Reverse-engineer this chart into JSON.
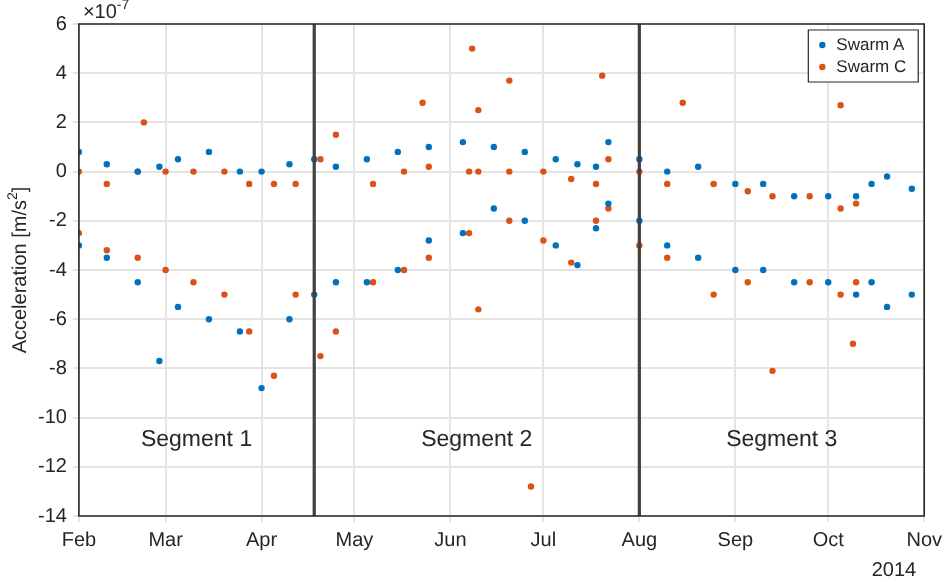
{
  "chart_data": {
    "type": "scatter",
    "ylabel": "Acceleration [m/s$^{2}$]",
    "annotations": [
      "×10$^{-7}$",
      "2014",
      "Segment 1",
      "Segment 2",
      "Segment 3"
    ],
    "series": [
      {
        "name": "Swarm A",
        "color": "#0072bd",
        "x": [
          "2014-02-01",
          "2014-02-01",
          "2014-02-10",
          "2014-02-10",
          "2014-02-20",
          "2014-02-20",
          "2014-02-27",
          "2014-02-27",
          "2014-03-05",
          "2014-03-05",
          "2014-03-15",
          "2014-03-15",
          "2014-03-25",
          "2014-03-25",
          "2014-04-01",
          "2014-04-01",
          "2014-04-10",
          "2014-04-10",
          "2014-04-18",
          "2014-04-18",
          "2014-04-25",
          "2014-04-25",
          "2014-05-05",
          "2014-05-05",
          "2014-05-15",
          "2014-05-15",
          "2014-05-25",
          "2014-05-25",
          "2014-06-05",
          "2014-06-05",
          "2014-06-15",
          "2014-06-15",
          "2014-06-25",
          "2014-06-25",
          "2014-07-05",
          "2014-07-05",
          "2014-07-12",
          "2014-07-12",
          "2014-07-18",
          "2014-07-18",
          "2014-07-22",
          "2014-07-22",
          "2014-08-01",
          "2014-08-01",
          "2014-08-10",
          "2014-08-10",
          "2014-08-20",
          "2014-08-20",
          "2014-09-01",
          "2014-09-01",
          "2014-09-10",
          "2014-09-10",
          "2014-09-20",
          "2014-09-20",
          "2014-10-01",
          "2014-10-01",
          "2014-10-10",
          "2014-10-10",
          "2014-10-15",
          "2014-10-15",
          "2014-10-20",
          "2014-10-20",
          "2014-10-28",
          "2014-10-28"
        ],
        "values": [
          0.8,
          -3,
          0.3,
          -3.5,
          0,
          -4.5,
          0.2,
          -7.7,
          0.5,
          -5.5,
          0.8,
          -6,
          0,
          -6.5,
          0,
          -8.8,
          0.3,
          -6,
          0.5,
          -5,
          0.2,
          -4.5,
          0.5,
          -4.5,
          0.8,
          -4,
          1,
          -2.8,
          1.2,
          -2.5,
          1,
          -1.5,
          0.8,
          -2,
          0.5,
          -3,
          0.3,
          -3.8,
          0.2,
          -2.3,
          1.2,
          -1.3,
          0.5,
          -2,
          0,
          -3,
          0.2,
          -3.5,
          -0.5,
          -4,
          -0.5,
          -4,
          -1,
          -4.5,
          -1,
          -4.5,
          -1,
          -5,
          -0.5,
          -4.5,
          -0.2,
          -5.5,
          -0.7,
          -5
        ]
      },
      {
        "name": "Swarm C",
        "color": "#d95319",
        "x": [
          "2014-02-01",
          "2014-02-01",
          "2014-02-10",
          "2014-02-10",
          "2014-02-20",
          "2014-02-20",
          "2014-03-01",
          "2014-03-01",
          "2014-03-10",
          "2014-03-10",
          "2014-03-20",
          "2014-03-20",
          "2014-03-28",
          "2014-03-28",
          "2014-04-05",
          "2014-04-05",
          "2014-04-12",
          "2014-04-12",
          "2014-04-20",
          "2014-04-20",
          "2014-04-25",
          "2014-04-25",
          "2014-05-07",
          "2014-05-07",
          "2014-05-17",
          "2014-05-17",
          "2014-05-25",
          "2014-05-25",
          "2014-06-07",
          "2014-06-07",
          "2014-06-10",
          "2014-06-10",
          "2014-06-20",
          "2014-06-20",
          "2014-07-01",
          "2014-07-01",
          "2014-07-10",
          "2014-07-10",
          "2014-07-18",
          "2014-07-18",
          "2014-07-22",
          "2014-07-22",
          "2014-08-01",
          "2014-08-01",
          "2014-08-10",
          "2014-08-10",
          "2014-08-25",
          "2014-08-25",
          "2014-09-05",
          "2014-09-05",
          "2014-09-13",
          "2014-09-13",
          "2014-09-25",
          "2014-09-25",
          "2014-10-05",
          "2014-10-05",
          "2014-10-10",
          "2014-10-10",
          "2014-02-22",
          "2014-06-08",
          "2014-06-10",
          "2014-06-20",
          "2014-07-20",
          "2014-08-15",
          "2014-10-05",
          "2014-06-27",
          "2014-10-09",
          "2014-05-23"
        ],
        "values": [
          0,
          -2.5,
          -0.5,
          -3.2,
          0,
          -3.5,
          0,
          -4,
          0,
          -4.5,
          0,
          -5,
          -0.5,
          -6.5,
          -0.5,
          -8.3,
          -0.5,
          -5,
          0.5,
          -7.5,
          1.5,
          -6.5,
          -0.5,
          -4.5,
          0,
          -4,
          0.2,
          -3.5,
          0,
          -2.5,
          0,
          -5.6,
          0,
          -2,
          0,
          -2.8,
          -0.3,
          -3.7,
          -0.5,
          -2,
          0.5,
          -1.5,
          0,
          -3,
          -0.5,
          -3.5,
          -0.5,
          -5,
          -0.8,
          -4.5,
          -1,
          -8.1,
          -1,
          -4.5,
          -1.5,
          -5,
          -1.3,
          -4.5,
          2,
          5,
          2.5,
          3.7,
          3.9,
          2.8,
          2.7,
          -12.8,
          -7,
          2.8
        ]
      }
    ],
    "xlim": [
      "2014-02-01",
      "2014-11-01"
    ],
    "xticks": [
      {
        "value": "2014-02-01",
        "label": "Feb"
      },
      {
        "value": "2014-03-01",
        "label": "Mar"
      },
      {
        "value": "2014-04-01",
        "label": "Apr"
      },
      {
        "value": "2014-05-01",
        "label": "May"
      },
      {
        "value": "2014-06-01",
        "label": "Jun"
      },
      {
        "value": "2014-07-01",
        "label": "Jul"
      },
      {
        "value": "2014-08-01",
        "label": "Aug"
      },
      {
        "value": "2014-09-01",
        "label": "Sep"
      },
      {
        "value": "2014-10-01",
        "label": "Oct"
      },
      {
        "value": "2014-11-01",
        "label": "Nov"
      }
    ],
    "ylim": [
      -14,
      6
    ],
    "yticks": [
      -14,
      -12,
      -10,
      -8,
      -6,
      -4,
      -2,
      0,
      2,
      4,
      6
    ],
    "ref_lines": [
      {
        "axis": "x",
        "value": "2014-04-18",
        "color": "#404040"
      },
      {
        "axis": "x",
        "value": "2014-08-01",
        "color": "#404040"
      }
    ],
    "grid": true,
    "legend": "top right",
    "marker": "circle"
  }
}
